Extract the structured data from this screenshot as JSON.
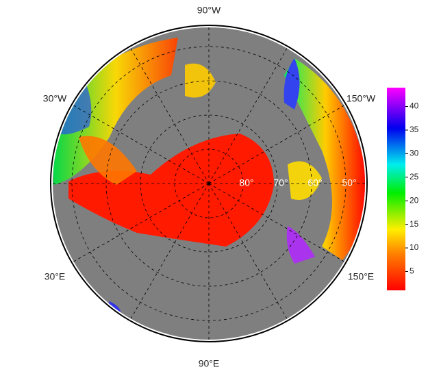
{
  "map": {
    "longitude_labels": [
      "90°W",
      "30°W",
      "150°W",
      "30°E",
      "150°E",
      "90°E"
    ],
    "latitude_labels": [
      "80°",
      "70°",
      "60°",
      "50°"
    ],
    "colorbar": {
      "range": [
        1,
        44
      ],
      "ticks": [
        5,
        10,
        15,
        20,
        25,
        30,
        35,
        40
      ]
    }
  }
}
